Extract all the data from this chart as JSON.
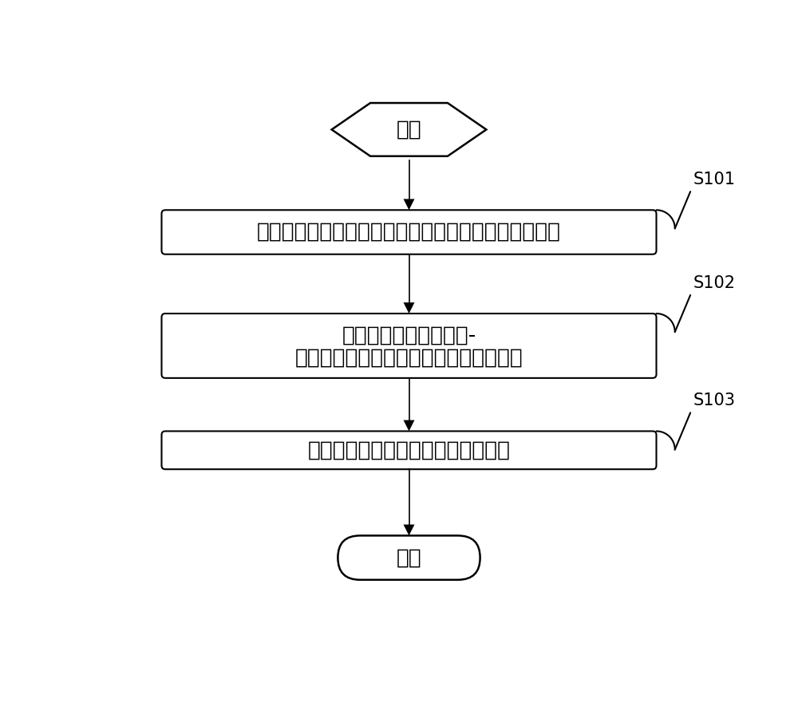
{
  "bg_color": "#ffffff",
  "shape_color": "#ffffff",
  "border_color": "#000000",
  "text_color": "#000000",
  "arrow_color": "#000000",
  "start_label": "开始",
  "end_label": "结束",
  "box1_label": "对充满水的待检锅炉管道进行检测，得到其回波波幅值",
  "box2_line1": "根据回波波幅值从波幅-",
  "box2_line2": "氧化皮体积比参考曲线得到氧化皮体积比",
  "box3_label": "根据氧化皮体积比输出处理建议信息",
  "step_labels": [
    "S101",
    "S102",
    "S103"
  ],
  "font_size_main": 19,
  "font_size_step": 15,
  "figwidth": 10.0,
  "figheight": 8.85,
  "dpi": 100
}
